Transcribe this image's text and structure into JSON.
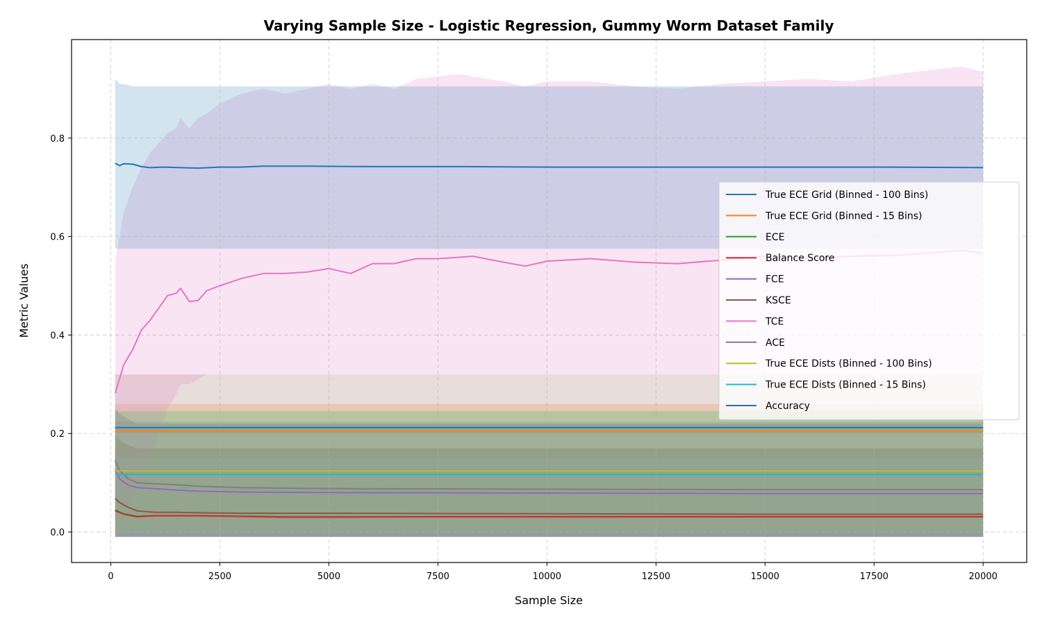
{
  "chart_data": {
    "type": "line",
    "title": "Varying Sample Size - Logistic Regression, Gummy Worm Dataset Family",
    "xlabel": "Sample Size",
    "ylabel": "Metric Values",
    "xlim": [
      -900,
      21000
    ],
    "ylim": [
      -0.062,
      1.0
    ],
    "xticks": [
      0,
      2500,
      5000,
      7500,
      10000,
      12500,
      15000,
      17500,
      20000
    ],
    "yticks": [
      0.0,
      0.2,
      0.4,
      0.6,
      0.8
    ],
    "grid": true,
    "legend_position": "center-right",
    "series": [
      {
        "name": "True ECE Grid (Binned - 100 Bins)",
        "color": "#1f77b4",
        "x": [
          100,
          20000
        ],
        "y": [
          0.212,
          0.212
        ],
        "band_lower": [
          0.2,
          0.2
        ],
        "band_upper": [
          0.224,
          0.224
        ],
        "band_alpha": 0.2
      },
      {
        "name": "True ECE Grid (Binned - 15 Bins)",
        "color": "#ff7f0e",
        "x": [
          100,
          20000
        ],
        "y": [
          0.205,
          0.205
        ],
        "band_lower": [
          0.15,
          0.15
        ],
        "band_upper": [
          0.26,
          0.26
        ],
        "band_alpha": 0.2
      },
      {
        "name": "ECE",
        "color": "#2ca02c",
        "x": [
          100,
          300,
          600,
          1000,
          2000,
          4000,
          8000,
          12000,
          16000,
          20000
        ],
        "y": [
          0.045,
          0.037,
          0.032,
          0.033,
          0.033,
          0.031,
          0.031,
          0.031,
          0.031,
          0.031
        ],
        "band_lower": [
          -0.01,
          -0.01,
          -0.01,
          -0.01,
          -0.01,
          -0.01,
          -0.01,
          -0.01,
          -0.01,
          -0.01
        ],
        "band_upper": [
          0.2,
          0.18,
          0.17,
          0.17,
          0.17,
          0.17,
          0.17,
          0.17,
          0.17,
          0.17
        ],
        "band_alpha": 0.2
      },
      {
        "name": "Balance Score",
        "color": "#d62728",
        "x": [
          100,
          300,
          600,
          1000,
          2000,
          4000,
          8000,
          12000,
          16000,
          20000
        ],
        "y": [
          0.043,
          0.036,
          0.031,
          0.033,
          0.033,
          0.03,
          0.031,
          0.031,
          0.031,
          0.031
        ],
        "band_lower": [
          -0.01,
          -0.01,
          -0.01,
          -0.01,
          -0.01,
          -0.01,
          -0.01,
          -0.01,
          -0.01,
          -0.01
        ],
        "band_upper": [
          0.19,
          0.18,
          0.17,
          0.17,
          0.17,
          0.17,
          0.17,
          0.17,
          0.17,
          0.17
        ],
        "band_alpha": 0.2
      },
      {
        "name": "FCE",
        "color": "#9467bd",
        "x": [
          100,
          200,
          400,
          600,
          1000,
          1500,
          2000,
          3000,
          5000,
          10000,
          15000,
          20000
        ],
        "y": [
          0.125,
          0.108,
          0.095,
          0.09,
          0.088,
          0.085,
          0.083,
          0.081,
          0.08,
          0.079,
          0.078,
          0.078
        ],
        "band_lower": [
          -0.01,
          -0.01,
          -0.01,
          -0.01,
          -0.01,
          -0.01,
          -0.01,
          -0.01,
          -0.01,
          -0.01,
          -0.01,
          -0.01
        ],
        "band_upper": [
          0.25,
          0.24,
          0.23,
          0.22,
          0.22,
          0.22,
          0.22,
          0.22,
          0.22,
          0.22,
          0.22,
          0.22
        ],
        "band_alpha": 0.2
      },
      {
        "name": "KSCE",
        "color": "#8c564b",
        "x": [
          100,
          200,
          400,
          600,
          1000,
          1500,
          2000,
          3000,
          5000,
          10000,
          15000,
          20000
        ],
        "y": [
          0.068,
          0.06,
          0.05,
          0.043,
          0.04,
          0.04,
          0.039,
          0.038,
          0.038,
          0.037,
          0.036,
          0.036
        ],
        "band_lower": [
          -0.01,
          -0.01,
          -0.01,
          -0.01,
          -0.01,
          -0.01,
          -0.01,
          -0.01,
          -0.01,
          -0.01,
          -0.01,
          -0.01
        ],
        "band_upper": [
          0.32,
          0.32,
          0.32,
          0.32,
          0.32,
          0.32,
          0.32,
          0.32,
          0.32,
          0.32,
          0.32,
          0.32
        ],
        "band_alpha": 0.2
      },
      {
        "name": "TCE",
        "color": "#e377c2",
        "x": [
          100,
          300,
          500,
          700,
          900,
          1100,
          1300,
          1500,
          1600,
          1800,
          2000,
          2200,
          2500,
          3000,
          3500,
          4000,
          4500,
          5000,
          5500,
          6000,
          6500,
          7000,
          7500,
          8000,
          8300,
          9000,
          9500,
          10000,
          11000,
          12000,
          13000,
          14000,
          15000,
          16000,
          17000,
          18000,
          19000,
          19500,
          20000
        ],
        "y": [
          0.282,
          0.34,
          0.37,
          0.41,
          0.43,
          0.455,
          0.48,
          0.485,
          0.495,
          0.468,
          0.47,
          0.49,
          0.5,
          0.515,
          0.525,
          0.525,
          0.528,
          0.535,
          0.525,
          0.545,
          0.545,
          0.555,
          0.555,
          0.558,
          0.56,
          0.548,
          0.54,
          0.55,
          0.555,
          0.548,
          0.545,
          0.552,
          0.56,
          0.555,
          0.56,
          0.562,
          0.568,
          0.572,
          0.566
        ],
        "band_lower": [
          0.01,
          0.04,
          0.07,
          0.1,
          0.15,
          0.2,
          0.25,
          0.28,
          0.3,
          0.3,
          0.31,
          0.32,
          0.32,
          0.32,
          0.32,
          0.32,
          0.32,
          0.32,
          0.32,
          0.32,
          0.32,
          0.32,
          0.32,
          0.32,
          0.32,
          0.32,
          0.32,
          0.32,
          0.32,
          0.32,
          0.32,
          0.32,
          0.32,
          0.32,
          0.32,
          0.32,
          0.32,
          0.32,
          0.32
        ],
        "band_upper": [
          0.55,
          0.65,
          0.7,
          0.74,
          0.77,
          0.79,
          0.81,
          0.82,
          0.84,
          0.82,
          0.84,
          0.85,
          0.87,
          0.89,
          0.9,
          0.89,
          0.9,
          0.91,
          0.9,
          0.91,
          0.9,
          0.92,
          0.925,
          0.93,
          0.925,
          0.915,
          0.905,
          0.915,
          0.915,
          0.905,
          0.9,
          0.91,
          0.915,
          0.92,
          0.915,
          0.93,
          0.94,
          0.945,
          0.935
        ],
        "band_alpha": 0.2
      },
      {
        "name": "ACE",
        "color": "#7f7f7f",
        "x": [
          100,
          200,
          400,
          600,
          1000,
          1500,
          2000,
          3000,
          5000,
          10000,
          15000,
          20000
        ],
        "y": [
          0.145,
          0.125,
          0.108,
          0.1,
          0.098,
          0.096,
          0.093,
          0.09,
          0.088,
          0.087,
          0.086,
          0.086
        ],
        "band_lower": [
          -0.01,
          -0.01,
          -0.01,
          -0.01,
          -0.01,
          -0.01,
          -0.01,
          -0.01,
          -0.01,
          -0.01,
          -0.01,
          -0.01
        ],
        "band_upper": [
          0.25,
          0.24,
          0.23,
          0.22,
          0.22,
          0.22,
          0.22,
          0.22,
          0.22,
          0.22,
          0.22,
          0.22
        ],
        "band_alpha": 0.2
      },
      {
        "name": "True ECE Dists (Binned - 100 Bins)",
        "color": "#bcbd22",
        "x": [
          100,
          20000
        ],
        "y": [
          0.124,
          0.124
        ],
        "band_lower": [
          0.0,
          0.0
        ],
        "band_upper": [
          0.245,
          0.245
        ],
        "band_alpha": 0.2
      },
      {
        "name": "True ECE Dists (Binned - 15 Bins)",
        "color": "#17becf",
        "x": [
          100,
          20000
        ],
        "y": [
          0.117,
          0.117
        ],
        "band_lower": [
          -0.01,
          -0.01
        ],
        "band_upper": [
          0.245,
          0.245
        ],
        "band_alpha": 0.2
      },
      {
        "name": "Accuracy",
        "color": "#1f77b4",
        "x": [
          100,
          200,
          300,
          500,
          700,
          900,
          1200,
          1600,
          2000,
          2500,
          3000,
          3500,
          4500,
          6000,
          8000,
          10000,
          12000,
          15000,
          17500,
          20000
        ],
        "y": [
          0.749,
          0.744,
          0.748,
          0.747,
          0.742,
          0.74,
          0.741,
          0.74,
          0.739,
          0.741,
          0.741,
          0.743,
          0.743,
          0.742,
          0.742,
          0.741,
          0.741,
          0.741,
          0.741,
          0.74
        ],
        "band_lower": [
          0.575,
          0.575,
          0.575,
          0.575,
          0.575,
          0.575,
          0.575,
          0.575,
          0.575,
          0.575,
          0.575,
          0.575,
          0.575,
          0.575,
          0.575,
          0.575,
          0.575,
          0.575,
          0.575,
          0.575
        ],
        "band_upper": [
          0.92,
          0.91,
          0.91,
          0.905,
          0.905,
          0.905,
          0.905,
          0.905,
          0.905,
          0.905,
          0.905,
          0.905,
          0.905,
          0.905,
          0.905,
          0.905,
          0.905,
          0.905,
          0.905,
          0.905
        ],
        "band_alpha": 0.2
      }
    ]
  }
}
